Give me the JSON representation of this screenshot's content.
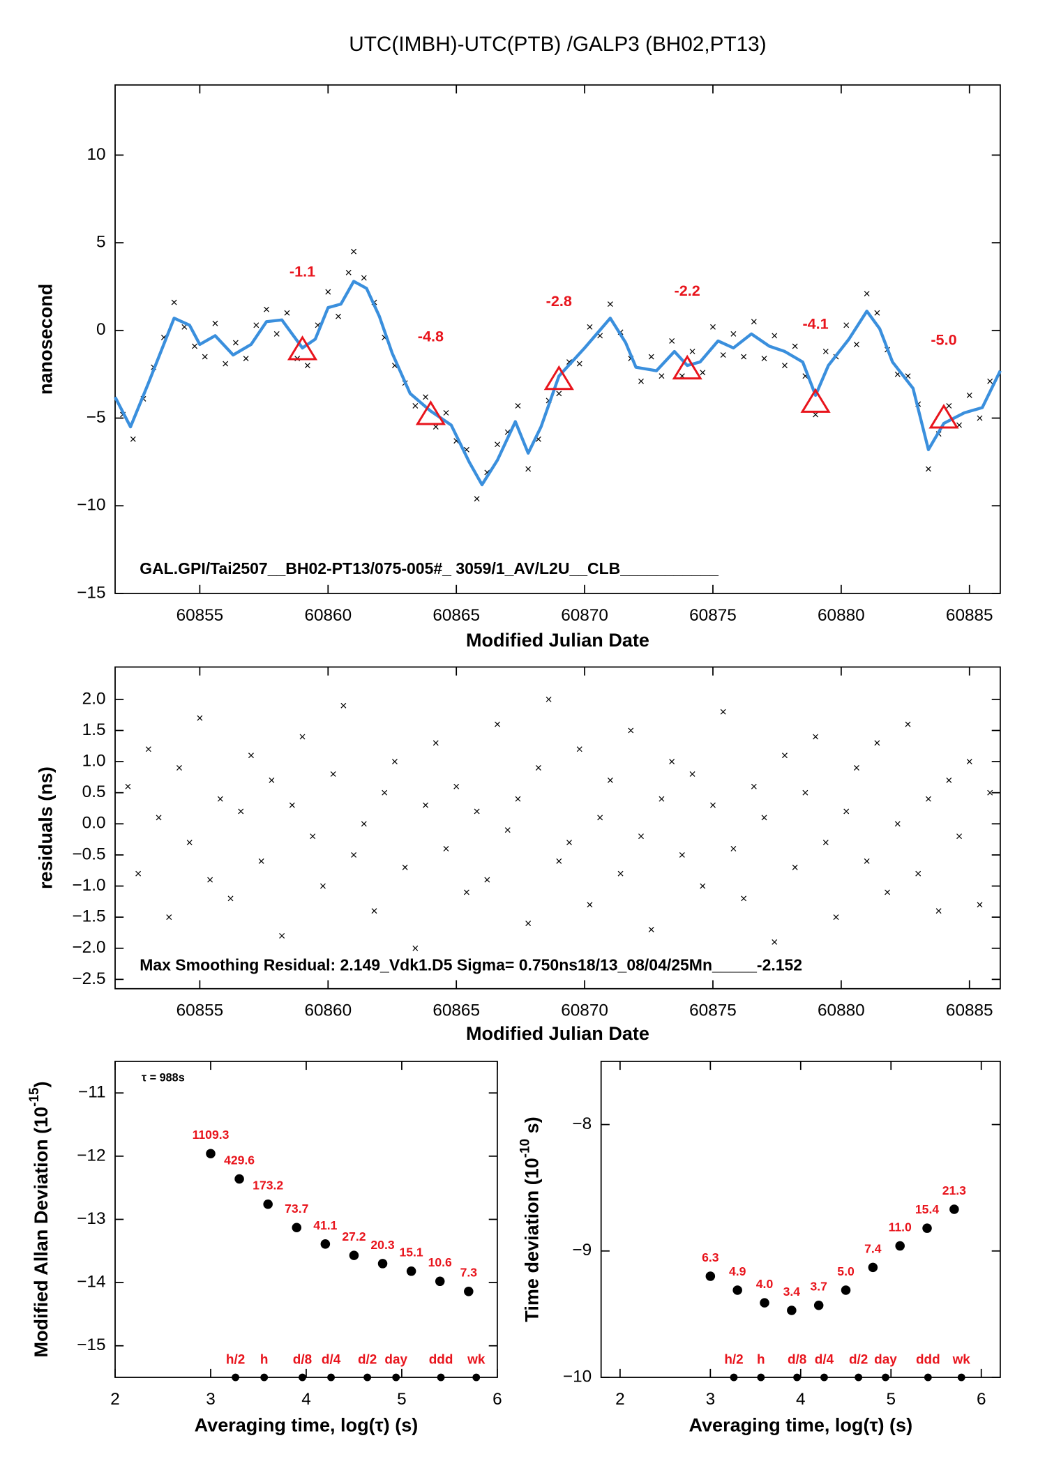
{
  "chart_data": [
    {
      "type": "scatter",
      "title": "UTC(IMBH)-UTC(PTB)  /GALP3  (BH02,PT13)",
      "xlabel": "Modified Julian Date",
      "ylabel": "nanosecond",
      "annotation": "GAL.GPI/Tai2507__BH02-PT13/075-005#_  3059/1_AV/L2U__CLB___________",
      "xlim": [
        60851.7,
        60886.2
      ],
      "ylim": [
        -15,
        14
      ],
      "xticks": [
        60855,
        60860,
        60865,
        60870,
        60875,
        60880,
        60885
      ],
      "yticks": [
        10,
        5,
        0,
        {
          "value": -5,
          "label": "−5"
        },
        {
          "value": -10,
          "label": "−10"
        },
        {
          "value": -15,
          "label": "−15"
        }
      ],
      "series": [
        {
          "style": "points",
          "color": "#000000",
          "x": [
            60852.0,
            60852.4,
            60852.8,
            60853.2,
            60853.6,
            60854.0,
            60854.4,
            60854.8,
            60855.2,
            60855.6,
            60856.0,
            60856.4,
            60856.8,
            60857.2,
            60857.6,
            60858.0,
            60858.4,
            60858.8,
            60859.2,
            60859.6,
            60860.0,
            60860.4,
            60860.8,
            60861.0,
            60861.4,
            60861.8,
            60862.2,
            60862.6,
            60863.0,
            60863.4,
            60863.8,
            60864.2,
            60864.6,
            60865.0,
            60865.4,
            60865.8,
            60866.2,
            60866.6,
            60867.0,
            60867.4,
            60867.8,
            60868.2,
            60868.6,
            60869.0,
            60869.4,
            60869.8,
            60870.2,
            60870.6,
            60871.0,
            60871.4,
            60871.8,
            60872.2,
            60872.6,
            60873.0,
            60873.4,
            60873.8,
            60874.2,
            60874.6,
            60875.0,
            60875.4,
            60875.8,
            60876.2,
            60876.6,
            60877.0,
            60877.4,
            60877.8,
            60878.2,
            60878.6,
            60879.0,
            60879.4,
            60879.8,
            60880.2,
            60880.6,
            60881.0,
            60881.4,
            60881.8,
            60882.2,
            60882.6,
            60883.0,
            60883.4,
            60883.8,
            60884.2,
            60884.6,
            60885.0,
            60885.4,
            60885.8
          ],
          "values": [
            -4.8,
            -6.2,
            -3.9,
            -2.1,
            -0.4,
            1.6,
            0.2,
            -0.9,
            -1.5,
            0.4,
            -1.9,
            -0.7,
            -1.6,
            0.3,
            1.2,
            -0.2,
            1.0,
            -1.6,
            -2.0,
            0.3,
            2.2,
            0.8,
            3.3,
            4.5,
            3.0,
            1.6,
            -0.4,
            -2.0,
            -3.0,
            -4.3,
            -3.8,
            -5.5,
            -4.7,
            -6.3,
            -6.8,
            -9.6,
            -8.1,
            -6.5,
            -5.8,
            -4.3,
            -7.9,
            -6.2,
            -4.0,
            -3.6,
            -1.8,
            -1.9,
            0.2,
            -0.3,
            1.5,
            -0.1,
            -1.6,
            -2.9,
            -1.5,
            -2.6,
            -0.6,
            -2.6,
            -1.2,
            -2.4,
            0.2,
            -1.4,
            -0.2,
            -1.5,
            0.5,
            -1.6,
            -0.3,
            -2.0,
            -0.9,
            -2.6,
            -4.8,
            -1.2,
            -1.5,
            0.3,
            -0.8,
            2.1,
            1.0,
            -1.1,
            -2.5,
            -2.6,
            -4.2,
            -7.9,
            -5.9,
            -4.3,
            -5.4,
            -3.7,
            -5.0,
            -2.9
          ]
        },
        {
          "style": "line",
          "color": "#3a8fdd",
          "x": [
            60851.7,
            60852.3,
            60853,
            60854,
            60854.6,
            60855,
            60855.6,
            60856.3,
            60857,
            60857.6,
            60858.2,
            60859,
            60859.5,
            60860,
            60860.5,
            60861,
            60861.5,
            60862,
            60862.5,
            60863.2,
            60864,
            60864.8,
            60865.5,
            60866,
            60866.6,
            60867.3,
            60867.8,
            60868.3,
            60869,
            60870,
            60871,
            60871.6,
            60872,
            60872.8,
            60873.5,
            60874,
            60874.5,
            60875.2,
            60875.8,
            60876.5,
            60877.2,
            60877.8,
            60878.5,
            60879,
            60879.5,
            60880.3,
            60881,
            60881.5,
            60882,
            60882.8,
            60883.4,
            60884,
            60884.8,
            60885.5,
            60886.2
          ],
          "values": [
            -3.8,
            -5.5,
            -3,
            0.7,
            0.3,
            -0.8,
            -0.3,
            -1.4,
            -0.8,
            0.5,
            0.6,
            -1.0,
            -0.5,
            1.3,
            1.5,
            2.8,
            2.4,
            0.8,
            -1.3,
            -3.6,
            -4.6,
            -5.4,
            -7.5,
            -8.8,
            -7.4,
            -5.2,
            -7.0,
            -5.5,
            -2.6,
            -1,
            0.7,
            -0.7,
            -2.1,
            -2.3,
            -1.2,
            -2.0,
            -1.8,
            -0.6,
            -1.0,
            -0.2,
            -0.9,
            -1.2,
            -1.8,
            -3.7,
            -2.0,
            -0.5,
            1.1,
            0.1,
            -1.8,
            -3.3,
            -6.8,
            -5.3,
            -4.7,
            -4.4,
            -2.3
          ]
        },
        {
          "style": "triangles",
          "color": "#e8141c",
          "x": [
            60859,
            60864,
            60869,
            60874,
            60879,
            60884
          ],
          "values": [
            -1.1,
            -4.8,
            -2.8,
            -2.2,
            -4.1,
            -5.0
          ],
          "value_labels": [
            "-1.1",
            "-4.8",
            "-2.8",
            "-2.2",
            "-4.1",
            "-5.0"
          ]
        }
      ]
    },
    {
      "type": "scatter",
      "xlabel": "Modified Julian Date",
      "ylabel": "residuals (ns)",
      "annotation": "Max Smoothing Residual: 2.149_Vdk1.D5  Sigma= 0.750ns18/13_08/04/25Mn_____-2.152",
      "xlim": [
        60851.7,
        60886.2
      ],
      "ylim": [
        -2.65,
        2.52
      ],
      "xticks": [
        60855,
        60860,
        60865,
        60870,
        60875,
        60880,
        60885
      ],
      "yticks": [
        {
          "value": 2,
          "label": "2.0"
        },
        {
          "value": 1.5,
          "label": "1.5"
        },
        {
          "value": 1,
          "label": "1.0"
        },
        {
          "value": 0.5,
          "label": "0.5"
        },
        {
          "value": 0,
          "label": "0.0"
        },
        {
          "value": -0.5,
          "label": "−0.5"
        },
        {
          "value": -1,
          "label": "−1.0"
        },
        {
          "value": -1.5,
          "label": "−1.5"
        },
        {
          "value": -2,
          "label": "−2.0"
        },
        {
          "value": -2.5,
          "label": "−2.5"
        }
      ],
      "series": [
        {
          "style": "points",
          "color": "#000000",
          "x": [
            60852.2,
            60852.6,
            60853.0,
            60853.4,
            60853.8,
            60854.2,
            60854.6,
            60855.0,
            60855.4,
            60855.8,
            60856.2,
            60856.6,
            60857.0,
            60857.4,
            60857.8,
            60858.2,
            60858.6,
            60859.0,
            60859.4,
            60859.8,
            60860.2,
            60860.6,
            60861.0,
            60861.4,
            60861.8,
            60862.2,
            60862.6,
            60863.0,
            60863.4,
            60863.8,
            60864.2,
            60864.6,
            60865.0,
            60865.4,
            60865.8,
            60866.2,
            60866.6,
            60867.0,
            60867.4,
            60867.8,
            60868.2,
            60868.6,
            60869.0,
            60869.4,
            60869.8,
            60870.2,
            60870.6,
            60871.0,
            60871.4,
            60871.8,
            60872.2,
            60872.6,
            60873.0,
            60873.4,
            60873.8,
            60874.2,
            60874.6,
            60875.0,
            60875.4,
            60875.8,
            60876.2,
            60876.6,
            60877.0,
            60877.4,
            60877.8,
            60878.2,
            60878.6,
            60879.0,
            60879.4,
            60879.8,
            60880.2,
            60880.6,
            60881.0,
            60881.4,
            60881.8,
            60882.2,
            60882.6,
            60883.0,
            60883.4,
            60883.8,
            60884.2,
            60884.6,
            60885.0,
            60885.4,
            60885.8
          ],
          "values": [
            0.6,
            -0.8,
            1.2,
            0.1,
            -1.5,
            0.9,
            -0.3,
            1.7,
            -0.9,
            0.4,
            -1.2,
            0.2,
            1.1,
            -0.6,
            0.7,
            -1.8,
            0.3,
            1.4,
            -0.2,
            -1.0,
            0.8,
            1.9,
            -0.5,
            0.0,
            -1.4,
            0.5,
            1.0,
            -0.7,
            -2.0,
            0.3,
            1.3,
            -0.4,
            0.6,
            -1.1,
            0.2,
            -0.9,
            1.6,
            -0.1,
            0.4,
            -1.6,
            0.9,
            2.0,
            -0.6,
            -0.3,
            1.2,
            -1.3,
            0.1,
            0.7,
            -0.8,
            1.5,
            -0.2,
            -1.7,
            0.4,
            1.0,
            -0.5,
            0.8,
            -1.0,
            0.3,
            1.8,
            -0.4,
            -1.2,
            0.6,
            0.1,
            -1.9,
            1.1,
            -0.7,
            0.5,
            1.4,
            -0.3,
            -1.5,
            0.2,
            0.9,
            -0.6,
            1.3,
            -1.1,
            0.0,
            1.6,
            -0.8,
            0.4,
            -1.4,
            0.7,
            -0.2,
            1.0,
            -1.3,
            0.5
          ]
        }
      ]
    },
    {
      "type": "scatter",
      "xlabel": "Averaging time, log(τ) (s)",
      "ylabel": "Modified Allan Deviation (10",
      "ylabel_sup": "-15",
      "ylabel_end": ")",
      "annotation": "τ = 988s",
      "xlim": [
        2,
        6
      ],
      "ylim": [
        -15.5,
        -10.5
      ],
      "xticks": [
        2,
        3,
        4,
        5,
        6
      ],
      "yticks": [
        {
          "value": -11,
          "label": "−11"
        },
        {
          "value": -12,
          "label": "−12"
        },
        {
          "value": -13,
          "label": "−13"
        },
        {
          "value": -14,
          "label": "−14"
        },
        {
          "value": -15,
          "label": "−15"
        }
      ],
      "series": [
        {
          "style": "dots",
          "color": "#000000",
          "x": [
            3.0,
            3.3,
            3.6,
            3.9,
            4.2,
            4.5,
            4.8,
            5.1,
            5.4,
            5.7
          ],
          "values": [
            -11.96,
            -12.36,
            -12.76,
            -13.13,
            -13.39,
            -13.57,
            -13.7,
            -13.82,
            -13.98,
            -14.14
          ],
          "point_labels": [
            "1109.3",
            "429.6",
            "173.2",
            "73.7",
            "41.1",
            "27.2",
            "20.3",
            "15.1",
            "10.6",
            "7.3"
          ]
        }
      ],
      "markers": {
        "x": [
          3.26,
          3.56,
          3.96,
          4.26,
          4.64,
          4.94,
          5.41,
          5.78
        ],
        "labels": [
          "h/2",
          "h",
          "d/8",
          "d/4",
          "d/2",
          "day",
          "ddd",
          "wk"
        ]
      }
    },
    {
      "type": "scatter",
      "xlabel": "Averaging time, log(τ) (s)",
      "ylabel": "Time deviation (10",
      "ylabel_sup": "-10",
      "ylabel_end": " s)",
      "xlim": [
        1.79,
        6.21
      ],
      "ylim": [
        -10,
        -7.5
      ],
      "xticks": [
        2,
        3,
        4,
        5,
        6
      ],
      "yticks": [
        {
          "value": -8,
          "label": "−8"
        },
        {
          "value": -9,
          "label": "−9"
        },
        {
          "value": -10,
          "label": "−10"
        }
      ],
      "series": [
        {
          "style": "dots",
          "color": "#000000",
          "x": [
            3.0,
            3.3,
            3.6,
            3.9,
            4.2,
            4.5,
            4.8,
            5.1,
            5.4,
            5.7
          ],
          "values": [
            -9.2,
            -9.31,
            -9.41,
            -9.47,
            -9.43,
            -9.31,
            -9.13,
            -8.96,
            -8.82,
            -8.67
          ],
          "point_labels": [
            "6.3",
            "4.9",
            "4.0",
            "3.4",
            "3.7",
            "5.0",
            "7.4",
            "11.0",
            "15.4",
            "21.3"
          ]
        }
      ],
      "markers": {
        "x": [
          3.26,
          3.56,
          3.96,
          4.26,
          4.64,
          4.94,
          5.41,
          5.78
        ],
        "labels": [
          "h/2",
          "h",
          "d/8",
          "d/4",
          "d/2",
          "day",
          "ddd",
          "wk"
        ]
      }
    }
  ]
}
